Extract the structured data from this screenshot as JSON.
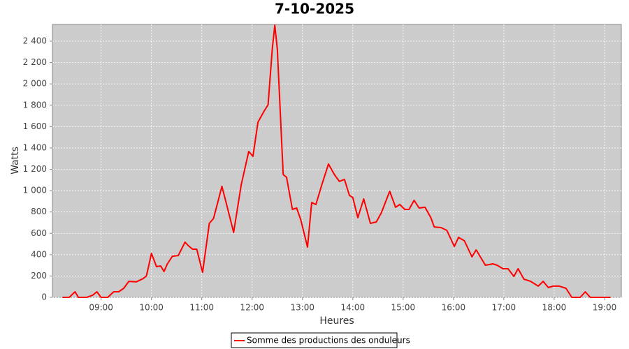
{
  "chart_data": {
    "type": "line",
    "title": "7-10-2025",
    "x_label": "Heures",
    "y_label": "Watts",
    "grid": true,
    "legend": "bottom",
    "xlim": [
      482,
      1160
    ],
    "ylim": [
      0,
      2557
    ],
    "xticks": [
      {
        "value": 540,
        "label": "09:00"
      },
      {
        "value": 600,
        "label": "10:00"
      },
      {
        "value": 660,
        "label": "11:00"
      },
      {
        "value": 720,
        "label": "12:00"
      },
      {
        "value": 780,
        "label": "13:00"
      },
      {
        "value": 840,
        "label": "14:00"
      },
      {
        "value": 900,
        "label": "15:00"
      },
      {
        "value": 960,
        "label": "16:00"
      },
      {
        "value": 1020,
        "label": "17:00"
      },
      {
        "value": 1080,
        "label": "18:00"
      },
      {
        "value": 1140,
        "label": "19:00"
      }
    ],
    "yticks": [
      0,
      200,
      400,
      600,
      800,
      {
        "value": 1000,
        "label": "1 000"
      },
      {
        "value": 1200,
        "label": "1 200"
      },
      {
        "value": 1400,
        "label": "1 400"
      },
      {
        "value": 1600,
        "label": "1 600"
      },
      {
        "value": 1800,
        "label": "1 800"
      },
      {
        "value": 2000,
        "label": "2 000"
      },
      {
        "value": 2200,
        "label": "2 200"
      },
      {
        "value": 2400,
        "label": "2 400"
      }
    ],
    "x": [
      494,
      502,
      509,
      513,
      523,
      530,
      535,
      540,
      548,
      555,
      561,
      567,
      573,
      582,
      590,
      594,
      600,
      606,
      611,
      615,
      619,
      625,
      632,
      640,
      644,
      649,
      654,
      661,
      669,
      674,
      679,
      684,
      689,
      698,
      707,
      716,
      721,
      727,
      734,
      739,
      744,
      747,
      750,
      757,
      761,
      768,
      773,
      778,
      786,
      791,
      796,
      803,
      811,
      818,
      824,
      830,
      836,
      840,
      846,
      853,
      861,
      868,
      874,
      884,
      891,
      896,
      902,
      907,
      913,
      919,
      926,
      933,
      937,
      945,
      952,
      961,
      966,
      973,
      982,
      987,
      992,
      998,
      1007,
      1012,
      1019,
      1025,
      1032,
      1037,
      1044,
      1052,
      1061,
      1067,
      1073,
      1079,
      1086,
      1094,
      1101,
      1111,
      1117,
      1123,
      1147
    ],
    "series": [
      {
        "name": "Somme des productions des onduleurs",
        "color": "#ff0000",
        "values": [
          0,
          0,
          52,
          0,
          0,
          20,
          52,
          0,
          0,
          52,
          52,
          85,
          150,
          145,
          175,
          200,
          412,
          288,
          294,
          242,
          314,
          385,
          392,
          517,
          484,
          451,
          451,
          235,
          693,
          739,
          889,
          1040,
          889,
          608,
          1053,
          1367,
          1321,
          1641,
          1740,
          1805,
          2328,
          2550,
          2328,
          1151,
          1125,
          824,
          837,
          726,
          471,
          889,
          870,
          1053,
          1249,
          1151,
          1086,
          1105,
          955,
          935,
          746,
          922,
          693,
          706,
          791,
          994,
          844,
          870,
          824,
          824,
          909,
          837,
          844,
          746,
          660,
          654,
          628,
          477,
          562,
          530,
          379,
          445,
          379,
          301,
          314,
          301,
          268,
          268,
          196,
          268,
          170,
          150,
          105,
          150,
          92,
          105,
          105,
          85,
          0,
          0,
          52,
          0,
          0
        ]
      }
    ]
  }
}
